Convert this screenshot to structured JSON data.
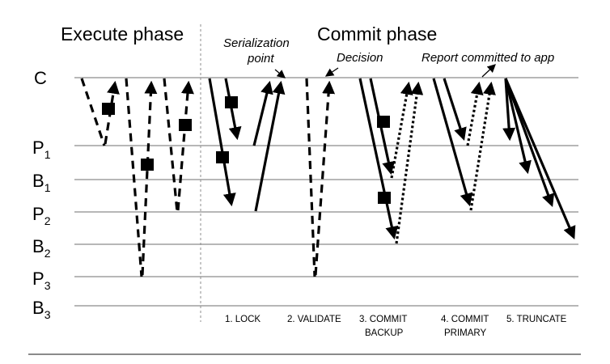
{
  "phases": {
    "execute": "Execute phase",
    "commit": "Commit phase"
  },
  "annotations": {
    "serialization_line1": "Serialization",
    "serialization_line2": "point",
    "decision": "Decision",
    "report": "Report committed to app"
  },
  "rows": [
    {
      "id": "C",
      "label": "C",
      "sub": ""
    },
    {
      "id": "P1",
      "label": "P",
      "sub": "1"
    },
    {
      "id": "B1",
      "label": "B",
      "sub": "1"
    },
    {
      "id": "P2",
      "label": "P",
      "sub": "2"
    },
    {
      "id": "B2",
      "label": "B",
      "sub": "2"
    },
    {
      "id": "P3",
      "label": "P",
      "sub": "3"
    },
    {
      "id": "B3",
      "label": "B",
      "sub": "3"
    }
  ],
  "steps": [
    {
      "line1": "1. LOCK",
      "line2": ""
    },
    {
      "line1": "2. VALIDATE",
      "line2": ""
    },
    {
      "line1": "3. COMMIT",
      "line2": "BACKUP"
    },
    {
      "line1": "4. COMMIT",
      "line2": "PRIMARY"
    },
    {
      "line1": "5. TRUNCATE",
      "line2": ""
    }
  ]
}
